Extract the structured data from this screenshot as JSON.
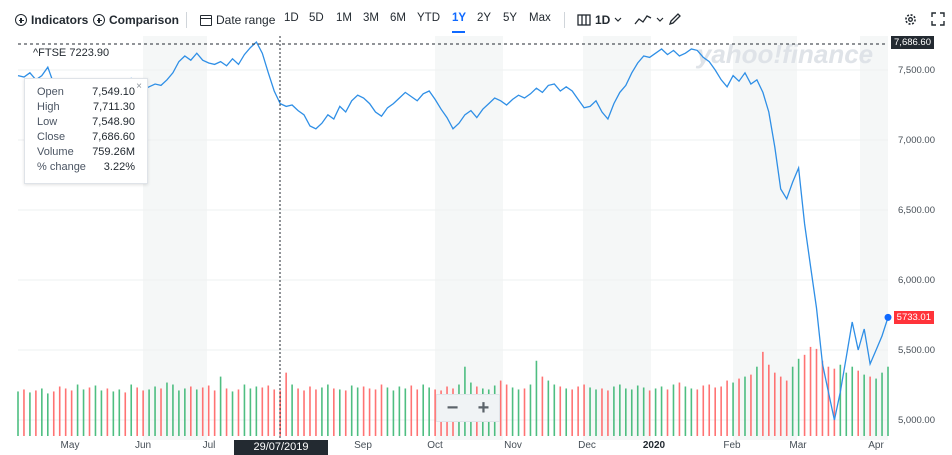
{
  "toolbar": {
    "indicators_label": "Indicators",
    "comparison_label": "Comparison",
    "date_range_label": "Date range",
    "ranges": [
      "1D",
      "5D",
      "1M",
      "3M",
      "6M",
      "YTD",
      "1Y",
      "2Y",
      "5Y",
      "Max"
    ],
    "active_range": "1Y",
    "interval_label": "1D",
    "icons": [
      "plus-circle-icon",
      "calendar-icon",
      "candlestick-icon",
      "chevron-down-icon",
      "line-chart-icon",
      "pencil-icon",
      "settings-icon",
      "fullscreen-icon"
    ]
  },
  "symbol": {
    "name": "^FTSE",
    "value": "7223.90"
  },
  "tooltip": {
    "rows": [
      {
        "label": "Open",
        "value": "7,549.10"
      },
      {
        "label": "High",
        "value": "7,711.30"
      },
      {
        "label": "Low",
        "value": "7,548.90"
      },
      {
        "label": "Close",
        "value": "7,686.60"
      },
      {
        "label": "Volume",
        "value": "759.26M"
      },
      {
        "label": "% change",
        "value": "3.22%"
      }
    ],
    "close_glyph": "×"
  },
  "crosshair_date": "29/07/2019",
  "price_tags": {
    "top": "7,686.60",
    "last": "5733.01"
  },
  "watermark": "yahoo!finance",
  "zoom": {
    "minus": "−",
    "plus": "+"
  },
  "colors": {
    "line": "#2f8fe6",
    "accent": "#0f69ff",
    "last_price": "#ff333a",
    "volume_up": "#2fb36b",
    "volume_down": "#ff5b5b"
  },
  "chart_data": {
    "type": "line",
    "title": "^FTSE",
    "x_tick_labels": [
      "May",
      "Jun",
      "Jul",
      "Sep",
      "Oct",
      "Nov",
      "Dec",
      "2020",
      "Feb",
      "Mar",
      "Apr"
    ],
    "y_tick_labels": [
      "7,500.00",
      "7,000.00",
      "6,500.00",
      "6,000.00",
      "5,500.00",
      "5,000.00"
    ],
    "y_ticks": [
      7500,
      7000,
      6500,
      6000,
      5500,
      5000
    ],
    "ylim": [
      4900,
      7750
    ],
    "series": [
      {
        "values": [
          7460,
          7450,
          7480,
          7430,
          7460,
          7520,
          7400,
          7320,
          7240,
          7160,
          7200,
          7250,
          7220,
          7300,
          7330,
          7310,
          7360,
          7390,
          7380,
          7440,
          7410,
          7360,
          7380,
          7400,
          7390,
          7430,
          7480,
          7560,
          7600,
          7570,
          7620,
          7570,
          7550,
          7540,
          7560,
          7530,
          7580,
          7540,
          7610,
          7660,
          7700,
          7620,
          7480,
          7350,
          7260,
          7240,
          7250,
          7210,
          7180,
          7100,
          7080,
          7120,
          7180,
          7150,
          7240,
          7200,
          7280,
          7320,
          7300,
          7260,
          7200,
          7170,
          7230,
          7260,
          7300,
          7340,
          7310,
          7280,
          7330,
          7350,
          7290,
          7220,
          7160,
          7080,
          7120,
          7180,
          7210,
          7160,
          7220,
          7260,
          7300,
          7280,
          7250,
          7290,
          7320,
          7300,
          7330,
          7370,
          7340,
          7390,
          7400,
          7350,
          7380,
          7350,
          7290,
          7230,
          7240,
          7280,
          7200,
          7150,
          7260,
          7340,
          7390,
          7480,
          7550,
          7600,
          7590,
          7620,
          7650,
          7610,
          7640,
          7600,
          7620,
          7650,
          7640,
          7590,
          7560,
          7500,
          7430,
          7380,
          7460,
          7420,
          7480,
          7400,
          7430,
          7340,
          7200,
          6950,
          6650,
          6580,
          6700,
          6800,
          6400,
          6100,
          5800,
          5400,
          5200,
          5000,
          5200,
          5450,
          5700,
          5500,
          5650,
          5400,
          5500,
          5600,
          5733
        ]
      }
    ],
    "volume_millions": [
      450,
      470,
      440,
      460,
      480,
      430,
      450,
      500,
      480,
      460,
      520,
      470,
      490,
      510,
      460,
      480,
      450,
      470,
      440,
      520,
      490,
      460,
      470,
      500,
      480,
      540,
      520,
      460,
      480,
      500,
      470,
      490,
      510,
      460,
      600,
      480,
      450,
      470,
      520,
      480,
      500,
      490,
      510,
      470,
      460,
      640,
      520,
      480,
      460,
      500,
      470,
      490,
      520,
      480,
      470,
      460,
      510,
      490,
      500,
      480,
      470,
      520,
      490,
      460,
      500,
      480,
      510,
      470,
      520,
      490,
      470,
      460,
      500,
      480,
      520,
      700,
      540,
      500,
      480,
      470,
      510,
      560,
      520,
      490,
      470,
      480,
      520,
      760,
      600,
      560,
      520,
      500,
      480,
      470,
      500,
      520,
      490,
      470,
      480,
      460,
      500,
      520,
      480,
      470,
      510,
      490,
      460,
      480,
      500,
      470,
      520,
      540,
      500,
      480,
      470,
      510,
      520,
      490,
      500,
      560,
      540,
      580,
      600,
      620,
      700,
      850,
      720,
      640,
      600,
      560,
      700,
      780,
      820,
      900,
      880,
      760,
      700,
      680,
      720,
      640,
      700,
      660,
      620,
      600,
      580,
      640,
      700
    ]
  }
}
